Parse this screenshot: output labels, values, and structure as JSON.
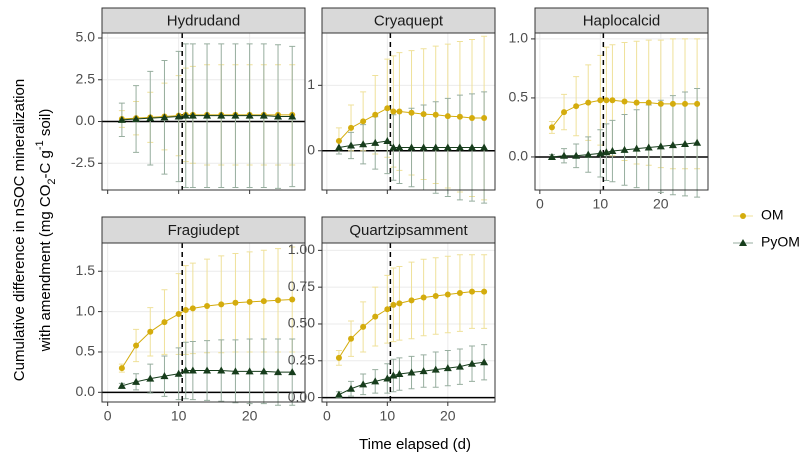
{
  "chart_data": {
    "type": "line",
    "x_label": "Time elapsed (d)",
    "y_label_1": "Cumulative difference in nSOC mineralization",
    "y_label_2": [
      "with amendment (mg CO",
      "2",
      "-C g",
      "-1",
      " soil)"
    ],
    "x": [
      2,
      4,
      6,
      8,
      10,
      11,
      12,
      14,
      16,
      18,
      20,
      22,
      24,
      26
    ],
    "xlim": [
      -0.8,
      27.8
    ],
    "xticks": [
      0,
      10,
      20
    ],
    "vline": 10.5,
    "hline": 0,
    "grid": true,
    "legend_position": "right",
    "series": [
      {
        "name": "OM",
        "color": "#d4ac0d",
        "error_color": "#efe19a",
        "marker": "circle"
      },
      {
        "name": "PyOM",
        "color": "#173d1c",
        "error_color": "#97ae9f",
        "marker": "triangle"
      }
    ],
    "panels": [
      {
        "title": "Hydrudand",
        "show_x_labels": false,
        "ylim": [
          -4.1,
          5.3
        ],
        "yticks": [
          {
            "value": -2.5,
            "label": "-2.5"
          },
          {
            "value": 0,
            "label": "0.0"
          },
          {
            "value": 2.5,
            "label": "2.5"
          },
          {
            "value": 5,
            "label": "5.0"
          }
        ],
        "values": [
          [
            0.15,
            0.2,
            0.25,
            0.3,
            0.35,
            0.4,
            0.4,
            0.4,
            0.4,
            0.4,
            0.4,
            0.4,
            0.4,
            0.4
          ],
          [
            0.1,
            0.15,
            0.2,
            0.25,
            0.3,
            0.35,
            0.35,
            0.35,
            0.35,
            0.35,
            0.35,
            0.35,
            0.3,
            0.3
          ]
        ],
        "errors": [
          [
            0.5,
            1.0,
            1.5,
            2.0,
            2.4,
            2.8,
            2.9,
            3.0,
            3.0,
            3.0,
            3.0,
            3.0,
            3.0,
            3.0
          ],
          [
            1.0,
            2.0,
            2.8,
            3.4,
            3.9,
            4.3,
            4.3,
            4.3,
            4.3,
            4.3,
            4.3,
            4.3,
            4.3,
            4.2
          ]
        ]
      },
      {
        "title": "Cryaquept",
        "show_x_labels": false,
        "ylim": [
          -0.6,
          1.8
        ],
        "yticks": [
          0,
          1
        ],
        "values": [
          [
            0.15,
            0.35,
            0.45,
            0.55,
            0.65,
            0.6,
            0.6,
            0.58,
            0.56,
            0.55,
            0.53,
            0.52,
            0.5,
            0.5
          ],
          [
            0.05,
            0.08,
            0.1,
            0.12,
            0.15,
            0.05,
            0.05,
            0.05,
            0.05,
            0.05,
            0.05,
            0.05,
            0.05,
            0.05
          ]
        ],
        "errors": [
          [
            0.2,
            0.35,
            0.45,
            0.6,
            0.75,
            0.85,
            0.9,
            0.95,
            1.0,
            1.05,
            1.1,
            1.15,
            1.2,
            1.25
          ],
          [
            0.1,
            0.2,
            0.3,
            0.4,
            0.5,
            0.5,
            0.55,
            0.6,
            0.65,
            0.7,
            0.75,
            0.8,
            0.82,
            0.85
          ]
        ]
      },
      {
        "title": "Haplocalcid",
        "show_x_labels": true,
        "ylim": [
          -0.28,
          1.05
        ],
        "yticks": [
          {
            "value": 0,
            "label": "0.0"
          },
          {
            "value": 0.5,
            "label": "0.5"
          },
          {
            "value": 1,
            "label": "1.0"
          }
        ],
        "values": [
          [
            0.25,
            0.38,
            0.43,
            0.46,
            0.48,
            0.48,
            0.48,
            0.47,
            0.46,
            0.46,
            0.45,
            0.45,
            0.45,
            0.45
          ],
          [
            0.0,
            0.01,
            0.01,
            0.02,
            0.03,
            0.04,
            0.05,
            0.06,
            0.07,
            0.08,
            0.09,
            0.1,
            0.11,
            0.12
          ]
        ],
        "errors": [
          [
            0.05,
            0.15,
            0.25,
            0.32,
            0.38,
            0.45,
            0.47,
            0.5,
            0.52,
            0.53,
            0.54,
            0.55,
            0.55,
            0.55
          ],
          [
            0.02,
            0.06,
            0.1,
            0.15,
            0.2,
            0.24,
            0.26,
            0.3,
            0.33,
            0.36,
            0.39,
            0.42,
            0.44,
            0.46
          ]
        ]
      },
      {
        "title": "Fragiudept",
        "show_x_labels": true,
        "ylim": [
          -0.12,
          1.85
        ],
        "yticks": [
          {
            "value": 0,
            "label": "0.0"
          },
          {
            "value": 0.5,
            "label": "0.5"
          },
          {
            "value": 1,
            "label": "1.0"
          },
          {
            "value": 1.5,
            "label": "1.5"
          }
        ],
        "values": [
          [
            0.3,
            0.58,
            0.75,
            0.87,
            0.97,
            1.02,
            1.04,
            1.07,
            1.09,
            1.11,
            1.12,
            1.13,
            1.14,
            1.15
          ],
          [
            0.08,
            0.13,
            0.17,
            0.2,
            0.23,
            0.27,
            0.27,
            0.27,
            0.27,
            0.26,
            0.26,
            0.26,
            0.25,
            0.25
          ]
        ],
        "errors": [
          [
            0.05,
            0.2,
            0.3,
            0.4,
            0.5,
            0.55,
            0.56,
            0.58,
            0.6,
            0.61,
            0.62,
            0.63,
            0.64,
            0.65
          ],
          [
            0.03,
            0.1,
            0.18,
            0.25,
            0.32,
            0.35,
            0.36,
            0.37,
            0.38,
            0.39,
            0.4,
            0.4,
            0.41,
            0.41
          ]
        ]
      },
      {
        "title": "Quartzipsamment",
        "show_x_labels": true,
        "ylim": [
          -0.03,
          1.05
        ],
        "yticks": [
          {
            "value": 0,
            "label": "0.00"
          },
          {
            "value": 0.25,
            "label": "0.25"
          },
          {
            "value": 0.5,
            "label": "0.50"
          },
          {
            "value": 0.75,
            "label": "0.75"
          },
          {
            "value": 1,
            "label": "1.00"
          }
        ],
        "values": [
          [
            0.27,
            0.4,
            0.48,
            0.55,
            0.6,
            0.63,
            0.64,
            0.66,
            0.68,
            0.69,
            0.7,
            0.71,
            0.72,
            0.72
          ],
          [
            0.02,
            0.06,
            0.09,
            0.11,
            0.13,
            0.15,
            0.16,
            0.17,
            0.18,
            0.19,
            0.2,
            0.21,
            0.23,
            0.24
          ]
        ],
        "errors": [
          [
            0.05,
            0.12,
            0.17,
            0.2,
            0.23,
            0.25,
            0.25,
            0.26,
            0.26,
            0.26,
            0.26,
            0.26,
            0.25,
            0.25
          ],
          [
            0.02,
            0.05,
            0.07,
            0.08,
            0.1,
            0.11,
            0.11,
            0.11,
            0.11,
            0.12,
            0.12,
            0.12,
            0.12,
            0.12
          ]
        ]
      }
    ]
  }
}
